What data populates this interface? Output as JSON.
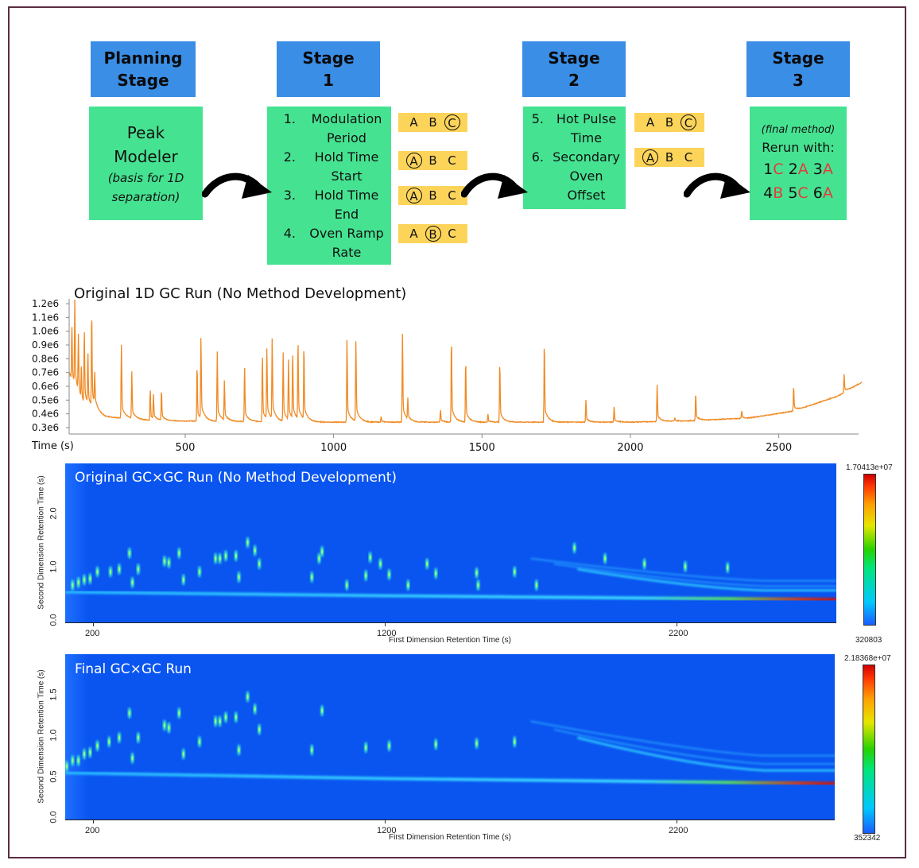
{
  "workflow": {
    "planning": {
      "header_line1": "Planning",
      "header_line2": "Stage",
      "body_line1": "Peak",
      "body_line2": "Modeler",
      "body_note_line1": "(basis for 1D",
      "body_note_line2": "separation)"
    },
    "stage1": {
      "header_line1": "Stage",
      "header_line2": "1",
      "items": [
        {
          "num": "1.",
          "line1": "Modulation",
          "line2": "Period",
          "options": [
            "A",
            "B",
            "C"
          ],
          "selected": "C"
        },
        {
          "num": "2.",
          "line1": "Hold Time",
          "line2": "Start",
          "options": [
            "A",
            "B",
            "C"
          ],
          "selected": "A"
        },
        {
          "num": "3.",
          "line1": "Hold Time",
          "line2": "End",
          "options": [
            "A",
            "B",
            "C"
          ],
          "selected": "A"
        },
        {
          "num": "4.",
          "line1": "Oven Ramp",
          "line2": "Rate",
          "options": [
            "A",
            "B",
            "C"
          ],
          "selected": "B"
        }
      ]
    },
    "stage2": {
      "header_line1": "Stage",
      "header_line2": "2",
      "items": [
        {
          "num": "5.",
          "line1": "Hot Pulse",
          "line2": "Time",
          "options": [
            "A",
            "B",
            "C"
          ],
          "selected": "C"
        },
        {
          "num": "6.",
          "line1": "Secondary",
          "line2": "Oven",
          "line3": "Offset",
          "options": [
            "A",
            "B",
            "C"
          ],
          "selected": "A"
        }
      ]
    },
    "stage3": {
      "header_line1": "Stage",
      "header_line2": "3",
      "note": "(final method)",
      "rerun_label": "Rerun with:",
      "row1": [
        {
          "n": "1",
          "l": "C"
        },
        {
          "n": "2",
          "l": "A"
        },
        {
          "n": "3",
          "l": "A"
        }
      ],
      "row2": [
        {
          "n": "4",
          "l": "B"
        },
        {
          "n": "5",
          "l": "C"
        },
        {
          "n": "6",
          "l": "A"
        }
      ]
    },
    "colors": {
      "header_blue": "#3a8ee6",
      "box_green": "#45e391",
      "tag_yellow": "#fcd45a",
      "highlight_red": "#e23b3b",
      "frame": "#5b2c43"
    }
  },
  "chart_data": [
    {
      "type": "line",
      "title": "Original 1D GC Run (No Method Development)",
      "xlabel": "Time (s)",
      "ylabel": "",
      "xlim": [
        110,
        2780
      ],
      "ylim": [
        300000.0,
        1200000.0
      ],
      "x_ticks": [
        500,
        1000,
        1500,
        2000,
        2500
      ],
      "y_ticks": [
        "0.3e6",
        "0.4e6",
        "0.5e6",
        "0.6e6",
        "0.7e6",
        "0.8e6",
        "0.9e6",
        "1.0e6",
        "1.1e6",
        "1.2e6"
      ],
      "color": "#f08a24",
      "baseline": [
        [
          110,
          700000.0
        ],
        [
          150,
          450000.0
        ],
        [
          230,
          380000.0
        ],
        [
          400,
          350000.0
        ],
        [
          1000,
          340000.0
        ],
        [
          1500,
          340000.0
        ],
        [
          2000,
          340000.0
        ],
        [
          2200,
          350000.0
        ],
        [
          2400,
          370000.0
        ],
        [
          2550,
          420000.0
        ],
        [
          2700,
          530000.0
        ],
        [
          2780,
          630000.0
        ]
      ],
      "peaks": [
        {
          "x": 118,
          "y": 1050000.0
        },
        {
          "x": 128,
          "y": 1200000.0
        },
        {
          "x": 140,
          "y": 930000.0
        },
        {
          "x": 150,
          "y": 700000.0
        },
        {
          "x": 160,
          "y": 980000.0
        },
        {
          "x": 172,
          "y": 810000.0
        },
        {
          "x": 185,
          "y": 1110000.0
        },
        {
          "x": 195,
          "y": 640000.0
        },
        {
          "x": 285,
          "y": 910000.0
        },
        {
          "x": 320,
          "y": 700000.0
        },
        {
          "x": 382,
          "y": 580000.0
        },
        {
          "x": 393,
          "y": 530000.0
        },
        {
          "x": 420,
          "y": 570000.0
        },
        {
          "x": 540,
          "y": 750000.0
        },
        {
          "x": 553,
          "y": 940000.0
        },
        {
          "x": 608,
          "y": 850000.0
        },
        {
          "x": 632,
          "y": 630000.0
        },
        {
          "x": 700,
          "y": 750000.0
        },
        {
          "x": 760,
          "y": 830000.0
        },
        {
          "x": 775,
          "y": 860000.0
        },
        {
          "x": 793,
          "y": 930000.0
        },
        {
          "x": 830,
          "y": 840000.0
        },
        {
          "x": 848,
          "y": 770000.0
        },
        {
          "x": 862,
          "y": 820000.0
        },
        {
          "x": 880,
          "y": 900000.0
        },
        {
          "x": 900,
          "y": 870000.0
        },
        {
          "x": 1045,
          "y": 950000.0
        },
        {
          "x": 1075,
          "y": 930000.0
        },
        {
          "x": 1160,
          "y": 380000.0
        },
        {
          "x": 1232,
          "y": 980000.0
        },
        {
          "x": 1250,
          "y": 490000.0
        },
        {
          "x": 1360,
          "y": 430000.0
        },
        {
          "x": 1397,
          "y": 950000.0
        },
        {
          "x": 1445,
          "y": 790000.0
        },
        {
          "x": 1520,
          "y": 400000.0
        },
        {
          "x": 1560,
          "y": 770000.0
        },
        {
          "x": 1710,
          "y": 920000.0
        },
        {
          "x": 1850,
          "y": 500000.0
        },
        {
          "x": 1945,
          "y": 450000.0
        },
        {
          "x": 2090,
          "y": 610000.0
        },
        {
          "x": 2150,
          "y": 370000.0
        },
        {
          "x": 2220,
          "y": 550000.0
        },
        {
          "x": 2375,
          "y": 420000.0
        },
        {
          "x": 2550,
          "y": 600000.0
        },
        {
          "x": 2720,
          "y": 690000.0
        }
      ]
    },
    {
      "type": "heatmap",
      "title": "Original GC×GC Run (No Method Development)",
      "xlabel": "First Dimension Retention Time (s)",
      "ylabel": "Second Dimension Retention Time (s)",
      "x_ticks": [
        200,
        1200,
        2200
      ],
      "y_ticks": [
        "0.0",
        "1.0",
        "2.0"
      ],
      "xlim": [
        105,
        2750
      ],
      "ylim": [
        0.0,
        3.0
      ],
      "colorbar": {
        "max": "1.70413e+07",
        "min": "320803"
      },
      "baseline_band": [
        [
          105,
          0.57
        ],
        [
          1200,
          0.5
        ],
        [
          2200,
          0.45
        ],
        [
          2750,
          0.43
        ]
      ],
      "spots": [
        {
          "x": 130,
          "y": 0.7
        },
        {
          "x": 150,
          "y": 0.75
        },
        {
          "x": 170,
          "y": 0.8
        },
        {
          "x": 190,
          "y": 0.82
        },
        {
          "x": 215,
          "y": 0.95
        },
        {
          "x": 260,
          "y": 0.95
        },
        {
          "x": 290,
          "y": 1.0
        },
        {
          "x": 325,
          "y": 1.3
        },
        {
          "x": 335,
          "y": 0.75
        },
        {
          "x": 355,
          "y": 1.0
        },
        {
          "x": 445,
          "y": 1.15
        },
        {
          "x": 460,
          "y": 1.12
        },
        {
          "x": 495,
          "y": 1.3
        },
        {
          "x": 510,
          "y": 0.8
        },
        {
          "x": 565,
          "y": 0.95
        },
        {
          "x": 620,
          "y": 1.2
        },
        {
          "x": 635,
          "y": 1.2
        },
        {
          "x": 655,
          "y": 1.25
        },
        {
          "x": 690,
          "y": 1.25
        },
        {
          "x": 700,
          "y": 0.85
        },
        {
          "x": 730,
          "y": 1.5
        },
        {
          "x": 755,
          "y": 1.35
        },
        {
          "x": 770,
          "y": 1.1
        },
        {
          "x": 950,
          "y": 0.85
        },
        {
          "x": 975,
          "y": 1.2
        },
        {
          "x": 985,
          "y": 1.33
        },
        {
          "x": 1070,
          "y": 0.7
        },
        {
          "x": 1135,
          "y": 0.88
        },
        {
          "x": 1150,
          "y": 1.22
        },
        {
          "x": 1185,
          "y": 1.1
        },
        {
          "x": 1215,
          "y": 0.9
        },
        {
          "x": 1280,
          "y": 0.7
        },
        {
          "x": 1345,
          "y": 1.1
        },
        {
          "x": 1375,
          "y": 0.92
        },
        {
          "x": 1515,
          "y": 0.93
        },
        {
          "x": 1520,
          "y": 0.7
        },
        {
          "x": 1645,
          "y": 0.95
        },
        {
          "x": 1720,
          "y": 0.7
        },
        {
          "x": 1850,
          "y": 1.4
        },
        {
          "x": 1955,
          "y": 1.2
        },
        {
          "x": 2090,
          "y": 1.1
        },
        {
          "x": 2230,
          "y": 1.05
        },
        {
          "x": 2375,
          "y": 1.03
        }
      ]
    },
    {
      "type": "heatmap",
      "title": "Final GC×GC Run",
      "xlabel": "First Dimension Retention Time (s)",
      "ylabel": "Second Dimension Retention Time (s)",
      "x_ticks": [
        200,
        1200,
        2200
      ],
      "y_ticks": [
        "0.0",
        "0.5",
        "1.0",
        "1.5"
      ],
      "xlim": [
        105,
        2750
      ],
      "ylim": [
        0.0,
        2.0
      ],
      "colorbar": {
        "max": "2.18368e+07",
        "min": "352342"
      },
      "baseline_band": [
        [
          105,
          0.57
        ],
        [
          1200,
          0.5
        ],
        [
          2200,
          0.46
        ],
        [
          2750,
          0.44
        ]
      ],
      "spots": [
        {
          "x": 110,
          "y": 0.65
        },
        {
          "x": 130,
          "y": 0.72
        },
        {
          "x": 150,
          "y": 0.72
        },
        {
          "x": 170,
          "y": 0.8
        },
        {
          "x": 190,
          "y": 0.82
        },
        {
          "x": 215,
          "y": 0.9
        },
        {
          "x": 255,
          "y": 0.95
        },
        {
          "x": 290,
          "y": 1.0
        },
        {
          "x": 325,
          "y": 1.3
        },
        {
          "x": 335,
          "y": 0.75
        },
        {
          "x": 355,
          "y": 1.0
        },
        {
          "x": 445,
          "y": 1.15
        },
        {
          "x": 460,
          "y": 1.12
        },
        {
          "x": 495,
          "y": 1.3
        },
        {
          "x": 510,
          "y": 0.8
        },
        {
          "x": 565,
          "y": 0.95
        },
        {
          "x": 620,
          "y": 1.2
        },
        {
          "x": 635,
          "y": 1.2
        },
        {
          "x": 655,
          "y": 1.25
        },
        {
          "x": 690,
          "y": 1.25
        },
        {
          "x": 700,
          "y": 0.85
        },
        {
          "x": 730,
          "y": 1.5
        },
        {
          "x": 755,
          "y": 1.35
        },
        {
          "x": 770,
          "y": 1.1
        },
        {
          "x": 950,
          "y": 0.85
        },
        {
          "x": 985,
          "y": 1.33
        },
        {
          "x": 1135,
          "y": 0.88
        },
        {
          "x": 1215,
          "y": 0.9
        },
        {
          "x": 1375,
          "y": 0.92
        },
        {
          "x": 1515,
          "y": 0.93
        },
        {
          "x": 1645,
          "y": 0.95
        }
      ]
    }
  ]
}
